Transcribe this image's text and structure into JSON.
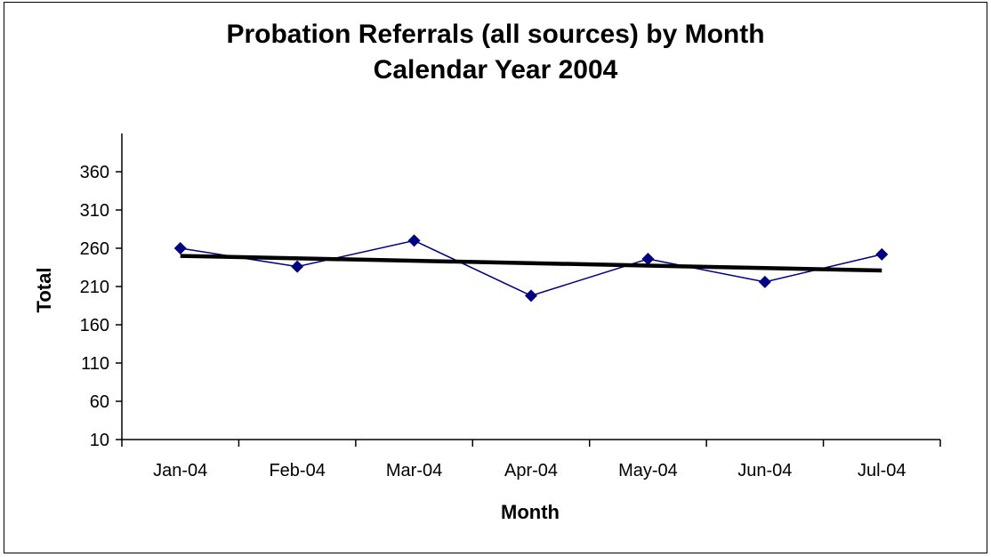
{
  "chart_data": {
    "type": "line",
    "title": "Probation Referrals (all sources) by Month",
    "subtitle": "Calendar Year 2004",
    "xlabel": "Month",
    "ylabel": "Total",
    "categories": [
      "Jan-04",
      "Feb-04",
      "Mar-04",
      "Apr-04",
      "May-04",
      "Jun-04",
      "Jul-04"
    ],
    "series": [
      {
        "values": [
          260,
          236,
          270,
          198,
          246,
          216,
          252
        ],
        "color": "#000080",
        "marker": "diamond"
      }
    ],
    "trendline": {
      "type": "linear",
      "start": 250,
      "end": 231,
      "color": "#000000"
    },
    "ylim": [
      10,
      400
    ],
    "yticks": [
      10,
      60,
      110,
      160,
      210,
      260,
      310,
      360
    ],
    "grid": false,
    "legend": "none"
  }
}
